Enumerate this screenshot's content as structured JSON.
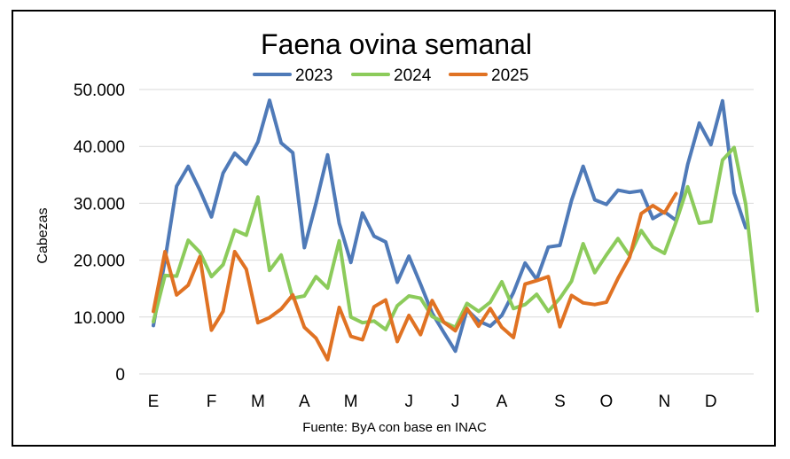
{
  "chart_data": {
    "type": "line",
    "title": "Faena ovina semanal",
    "ylabel": "Cabezas",
    "source": "Fuente: ByA con base en INAC",
    "ylim": [
      0,
      50000
    ],
    "yticks": [
      0,
      10000,
      20000,
      30000,
      40000,
      50000
    ],
    "ytick_labels": [
      "0",
      "10.000",
      "20.000",
      "30.000",
      "40.000",
      "50.000"
    ],
    "grid": true,
    "legend_position": "top",
    "x_unit": "week",
    "months": [
      {
        "label": "E",
        "week": 1
      },
      {
        "label": "F",
        "week": 6
      },
      {
        "label": "M",
        "week": 10
      },
      {
        "label": "A",
        "week": 14
      },
      {
        "label": "M",
        "week": 18
      },
      {
        "label": "J",
        "week": 23
      },
      {
        "label": "J",
        "week": 27
      },
      {
        "label": "A",
        "week": 31
      },
      {
        "label": "S",
        "week": 36
      },
      {
        "label": "O",
        "week": 40
      },
      {
        "label": "N",
        "week": 45
      },
      {
        "label": "D",
        "week": 49
      }
    ],
    "series": [
      {
        "name": "2023",
        "color": "#4F7AB8",
        "values": [
          8500,
          20000,
          33000,
          36500,
          32300,
          27600,
          35300,
          38800,
          36900,
          40800,
          48100,
          40600,
          38900,
          22200,
          30000,
          38500,
          26500,
          19600,
          28300,
          24200,
          23200,
          16100,
          20700,
          15800,
          10700,
          7300,
          4000,
          11300,
          9300,
          8400,
          10300,
          14300,
          19500,
          16600,
          22300,
          22600,
          30500,
          36500,
          30600,
          29800,
          32300,
          31900,
          32200,
          27300,
          28500,
          27000,
          36800,
          44100,
          40300,
          48000,
          31800,
          25700
        ]
      },
      {
        "name": "2024",
        "color": "#8CCB5B",
        "values": [
          9200,
          17300,
          17200,
          23500,
          21400,
          17100,
          19200,
          25300,
          24400,
          31100,
          18200,
          20900,
          13300,
          13700,
          17100,
          15100,
          23400,
          10000,
          9000,
          9300,
          7800,
          12000,
          13700,
          13300,
          10100,
          9100,
          8200,
          12400,
          11000,
          12600,
          16200,
          11500,
          12200,
          14000,
          11000,
          13300,
          16300,
          22900,
          17800,
          20900,
          23800,
          20800,
          25200,
          22300,
          21200,
          26700,
          32900,
          26500,
          26800,
          37600,
          39800,
          29800,
          11100
        ]
      },
      {
        "name": "2025",
        "color": "#E07223",
        "values": [
          11000,
          21500,
          13900,
          15600,
          20600,
          7700,
          11000,
          21500,
          18400,
          9000,
          9900,
          11400,
          13900,
          8200,
          6300,
          2500,
          11700,
          6600,
          6000,
          11800,
          13000,
          5700,
          10300,
          6900,
          12900,
          9100,
          7600,
          11500,
          8400,
          11500,
          8200,
          6400,
          15800,
          16400,
          17100,
          8300,
          13800,
          12500,
          12200,
          12600,
          16800,
          20500,
          28200,
          29600,
          28300,
          31700
        ]
      }
    ]
  }
}
